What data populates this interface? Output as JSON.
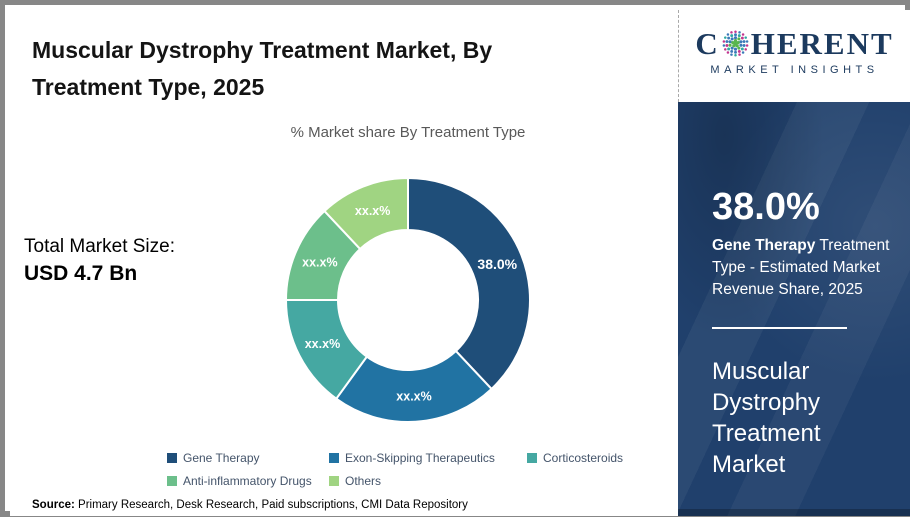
{
  "page": {
    "title": "Muscular Dystrophy Treatment Market, By Treatment Type, 2025",
    "source_label": "Source:",
    "source_text": " Primary Research, Desk Research, Paid subscriptions, CMI Data Repository"
  },
  "total_market": {
    "label": "Total Market Size:",
    "value": "USD 4.7 Bn"
  },
  "chart_data": {
    "type": "pie",
    "subtype": "donut",
    "title": "% Market share By Treatment Type",
    "legend_position": "bottom",
    "segments": [
      {
        "label": "Gene Therapy",
        "value": 38.0,
        "display": "38.0%",
        "color": "#1f4e79"
      },
      {
        "label": "Exon-Skipping Therapeutics",
        "value": 22.0,
        "display": "xx.x%",
        "color": "#2173a3"
      },
      {
        "label": "Corticosteroids",
        "value": 15.0,
        "display": "xx.x%",
        "color": "#45a8a2"
      },
      {
        "label": "Anti-inflammatory Drugs",
        "value": 13.0,
        "display": "xx.x%",
        "color": "#6cbf8b"
      },
      {
        "label": "Others",
        "value": 12.0,
        "display": "xx.x%",
        "color": "#a0d482"
      }
    ]
  },
  "sidebar": {
    "stat_value": "38.0%",
    "stat_bold": "Gene Therapy",
    "stat_rest": " Treatment Type - Estimated Market Revenue Share, 2025",
    "market_name_lines": [
      "Muscular",
      "Dystrophy",
      "Treatment",
      "Market"
    ]
  },
  "logo": {
    "brand_prefix": "C",
    "brand_suffix": "HERENT",
    "tagline": "MARKET INSIGHTS",
    "globe_colors": [
      "#c2368f",
      "#3b79b8",
      "#2fa9a2",
      "#58b54e"
    ]
  },
  "colors": {
    "sidebar_navy": "#20406c",
    "logo_navy": "#1c3a5e",
    "legend_text": "#44546a",
    "frame_gray": "#878787"
  }
}
